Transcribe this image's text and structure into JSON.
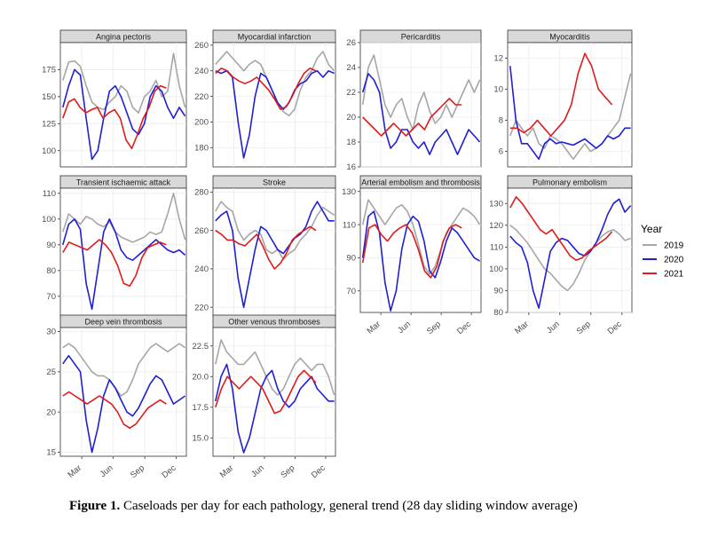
{
  "caption": {
    "label": "Figure 1.",
    "text": "Caseloads per day for each pathology, general trend (28 day sliding window average)"
  },
  "legend": {
    "title": "Year",
    "items": [
      {
        "name": "2019",
        "color": "#a6a6a6"
      },
      {
        "name": "2020",
        "color": "#1f1fd6"
      },
      {
        "name": "2021",
        "color": "#e01b1b"
      }
    ]
  },
  "x_ticks": [
    "Mar",
    "Jun",
    "Sep",
    "Dec"
  ],
  "chart_data": [
    {
      "type": "line",
      "title": "Angina pectoris",
      "ylim": [
        85,
        200
      ],
      "yticks": [
        100,
        125,
        150,
        175
      ],
      "x_axis": false,
      "series": [
        {
          "name": "2019",
          "values": [
            165,
            182,
            183,
            178,
            160,
            145,
            140,
            138,
            145,
            150,
            160,
            155,
            140,
            135,
            150,
            155,
            165,
            150,
            155,
            190,
            160,
            140
          ]
        },
        {
          "name": "2020",
          "values": [
            140,
            160,
            175,
            170,
            130,
            92,
            100,
            130,
            155,
            160,
            150,
            135,
            120,
            115,
            125,
            150,
            160,
            155,
            140,
            130,
            140,
            132
          ]
        },
        {
          "name": "2021",
          "values": [
            130,
            145,
            148,
            140,
            135,
            138,
            140,
            130,
            135,
            138,
            130,
            110,
            102,
            115,
            130,
            140,
            155,
            160,
            158
          ]
        }
      ]
    },
    {
      "type": "line",
      "title": "Myocardial infarction",
      "ylim": [
        165,
        262
      ],
      "yticks": [
        180,
        200,
        220,
        240,
        260
      ],
      "x_axis": false,
      "series": [
        {
          "name": "2019",
          "values": [
            245,
            250,
            255,
            250,
            245,
            240,
            245,
            248,
            245,
            235,
            225,
            215,
            208,
            205,
            210,
            225,
            235,
            240,
            250,
            255,
            245,
            240
          ]
        },
        {
          "name": "2020",
          "values": [
            240,
            238,
            240,
            235,
            200,
            172,
            190,
            220,
            238,
            235,
            225,
            215,
            210,
            215,
            225,
            230,
            232,
            238,
            240,
            235,
            240,
            238
          ]
        },
        {
          "name": "2021",
          "values": [
            238,
            242,
            240,
            235,
            232,
            230,
            232,
            235,
            230,
            225,
            218,
            210,
            212,
            220,
            230,
            238,
            242,
            240
          ]
        }
      ]
    },
    {
      "type": "line",
      "title": "Pericarditis",
      "ylim": [
        16,
        26
      ],
      "yticks": [
        16,
        18,
        20,
        22,
        24,
        26
      ],
      "x_axis": false,
      "series": [
        {
          "name": "2019",
          "values": [
            21,
            24,
            25,
            23,
            21,
            20,
            21,
            21.5,
            20,
            19,
            21,
            22,
            20.5,
            19.5,
            20,
            21,
            20,
            21,
            22,
            23,
            22,
            23
          ]
        },
        {
          "name": "2020",
          "values": [
            22,
            23.5,
            23,
            22,
            19,
            17.5,
            18,
            19,
            19,
            18,
            17.5,
            18,
            17,
            18,
            18.5,
            19,
            18,
            17,
            18,
            19,
            18.5,
            18
          ]
        },
        {
          "name": "2021",
          "values": [
            20,
            19.5,
            19,
            18.5,
            19,
            19.5,
            19,
            18.5,
            19,
            19.5,
            19,
            20,
            20.5,
            21,
            21.5,
            21,
            21
          ]
        }
      ]
    },
    {
      "type": "line",
      "title": "Myocarditis",
      "ylim": [
        5,
        13
      ],
      "yticks": [
        6,
        8,
        10,
        12
      ],
      "x_axis": false,
      "series": [
        {
          "name": "2019",
          "values": [
            7,
            8,
            7.5,
            7,
            7.5,
            6.5,
            6.2,
            7,
            6.8,
            6.5,
            6,
            5.5,
            6,
            6.5,
            6,
            6.2,
            6.5,
            7,
            7.5,
            8,
            9.5,
            11
          ]
        },
        {
          "name": "2020",
          "values": [
            11.5,
            8,
            6.5,
            6.5,
            6,
            5.5,
            6.5,
            6.8,
            6.5,
            6.6,
            6.5,
            6.4,
            6.6,
            6.8,
            6.5,
            6.2,
            6.5,
            7,
            6.8,
            7,
            7.5,
            7.5
          ]
        },
        {
          "name": "2021",
          "values": [
            7.5,
            7.5,
            7.2,
            7.5,
            8,
            7.5,
            7,
            7.5,
            8,
            9,
            11,
            12.3,
            11.5,
            10,
            9.5,
            9
          ]
        }
      ]
    },
    {
      "type": "line",
      "title": "Transient ischaemic attack",
      "ylim": [
        62,
        112
      ],
      "yticks": [
        70,
        80,
        90,
        100,
        110
      ],
      "x_axis": false,
      "series": [
        {
          "name": "2019",
          "values": [
            95,
            102,
            100,
            98,
            101,
            100,
            98,
            97,
            99,
            95,
            93,
            92,
            91,
            92,
            93,
            95,
            94,
            95,
            102,
            110,
            100,
            92
          ]
        },
        {
          "name": "2020",
          "values": [
            90,
            98,
            100,
            96,
            75,
            65,
            80,
            95,
            100,
            95,
            88,
            85,
            84,
            86,
            88,
            90,
            92,
            90,
            88,
            87,
            88,
            86
          ]
        },
        {
          "name": "2021",
          "values": [
            87,
            91,
            90,
            89,
            88,
            90,
            92,
            90,
            87,
            82,
            75,
            74,
            78,
            85,
            89,
            90,
            91,
            90
          ]
        }
      ]
    },
    {
      "type": "line",
      "title": "Stroke",
      "ylim": [
        215,
        282
      ],
      "yticks": [
        220,
        240,
        260,
        280
      ],
      "x_axis": false,
      "series": [
        {
          "name": "2019",
          "values": [
            270,
            275,
            272,
            270,
            260,
            255,
            258,
            260,
            258,
            250,
            248,
            250,
            245,
            248,
            250,
            255,
            258,
            262,
            268,
            272,
            270,
            268
          ]
        },
        {
          "name": "2020",
          "values": [
            265,
            268,
            270,
            260,
            235,
            220,
            235,
            250,
            262,
            260,
            255,
            250,
            248,
            252,
            256,
            258,
            262,
            270,
            275,
            270,
            265,
            265
          ]
        },
        {
          "name": "2021",
          "values": [
            260,
            258,
            255,
            255,
            253,
            252,
            255,
            258,
            252,
            245,
            240,
            243,
            248,
            255,
            258,
            260,
            262,
            260
          ]
        }
      ]
    },
    {
      "type": "line",
      "title": "Arterial embolism and thrombosis",
      "ylim": [
        57,
        132
      ],
      "yticks": [
        70,
        90,
        110,
        130
      ],
      "x_axis": true,
      "series": [
        {
          "name": "2019",
          "values": [
            110,
            125,
            120,
            115,
            110,
            115,
            120,
            122,
            118,
            110,
            98,
            85,
            80,
            85,
            95,
            105,
            110,
            115,
            120,
            118,
            115,
            110
          ]
        },
        {
          "name": "2020",
          "values": [
            90,
            115,
            118,
            105,
            75,
            58,
            70,
            95,
            110,
            115,
            112,
            100,
            82,
            78,
            88,
            100,
            108,
            105,
            100,
            95,
            90,
            88
          ]
        },
        {
          "name": "2021",
          "values": [
            87,
            108,
            110,
            104,
            100,
            105,
            108,
            110,
            105,
            95,
            82,
            78,
            85,
            100,
            108,
            110,
            108
          ]
        }
      ]
    },
    {
      "type": "line",
      "title": "Pulmonary embolism",
      "ylim": [
        80,
        137
      ],
      "yticks": [
        80,
        90,
        100,
        110,
        120,
        130
      ],
      "x_axis": true,
      "series": [
        {
          "name": "2019",
          "values": [
            120,
            118,
            115,
            112,
            108,
            104,
            100,
            98,
            95,
            92,
            90,
            93,
            98,
            104,
            108,
            112,
            115,
            117,
            118,
            116,
            113,
            114
          ]
        },
        {
          "name": "2020",
          "values": [
            115,
            112,
            110,
            103,
            90,
            82,
            95,
            108,
            112,
            114,
            113,
            110,
            107,
            106,
            108,
            112,
            118,
            125,
            130,
            132,
            126,
            129
          ]
        },
        {
          "name": "2021",
          "values": [
            128,
            133,
            130,
            126,
            122,
            118,
            116,
            118,
            114,
            110,
            106,
            104,
            105,
            108,
            110,
            112,
            114,
            117
          ]
        }
      ]
    },
    {
      "type": "line",
      "title": "Deep vein thrombosis",
      "ylim": [
        14.5,
        30.5
      ],
      "yticks": [
        15,
        20,
        25,
        30
      ],
      "x_axis": true,
      "series": [
        {
          "name": "2019",
          "values": [
            28,
            28.5,
            28,
            27,
            26,
            25,
            24.5,
            24.5,
            24,
            23,
            22,
            22.5,
            24,
            26,
            27,
            28,
            28.5,
            28,
            27.5,
            28,
            28.5,
            28
          ]
        },
        {
          "name": "2020",
          "values": [
            26,
            27,
            26,
            25,
            19,
            15,
            18,
            22,
            24,
            23,
            21.5,
            20,
            19.5,
            20.5,
            22,
            23.5,
            24.5,
            24,
            22.5,
            21,
            21.5,
            22
          ]
        },
        {
          "name": "2021",
          "values": [
            22,
            22.5,
            22,
            21.5,
            21,
            21.5,
            22,
            21.5,
            21,
            20,
            18.5,
            18,
            18.5,
            19.5,
            20.5,
            21,
            21.5,
            21
          ]
        }
      ]
    },
    {
      "type": "line",
      "title": "Other venous thromboses",
      "ylim": [
        13.5,
        24
      ],
      "yticks": [
        15.0,
        17.5,
        20.0,
        22.5
      ],
      "x_axis": true,
      "series": [
        {
          "name": "2019",
          "values": [
            21,
            23,
            22,
            21.5,
            21,
            21,
            21.5,
            22,
            21,
            20,
            19,
            18.5,
            19,
            20,
            21,
            21.5,
            21,
            20.5,
            21,
            21,
            20,
            18.5
          ]
        },
        {
          "name": "2020",
          "values": [
            18,
            20,
            21,
            19,
            15.5,
            13.8,
            15,
            17,
            19,
            20,
            20.5,
            19,
            18,
            17.5,
            18,
            19,
            19.5,
            20,
            19,
            18.5,
            18,
            18
          ]
        },
        {
          "name": "2021",
          "values": [
            17.5,
            19,
            20,
            19.5,
            19,
            19.5,
            20,
            19.5,
            19,
            18,
            17,
            17.2,
            18,
            19,
            20,
            20.5,
            20,
            19.5
          ]
        }
      ]
    }
  ]
}
